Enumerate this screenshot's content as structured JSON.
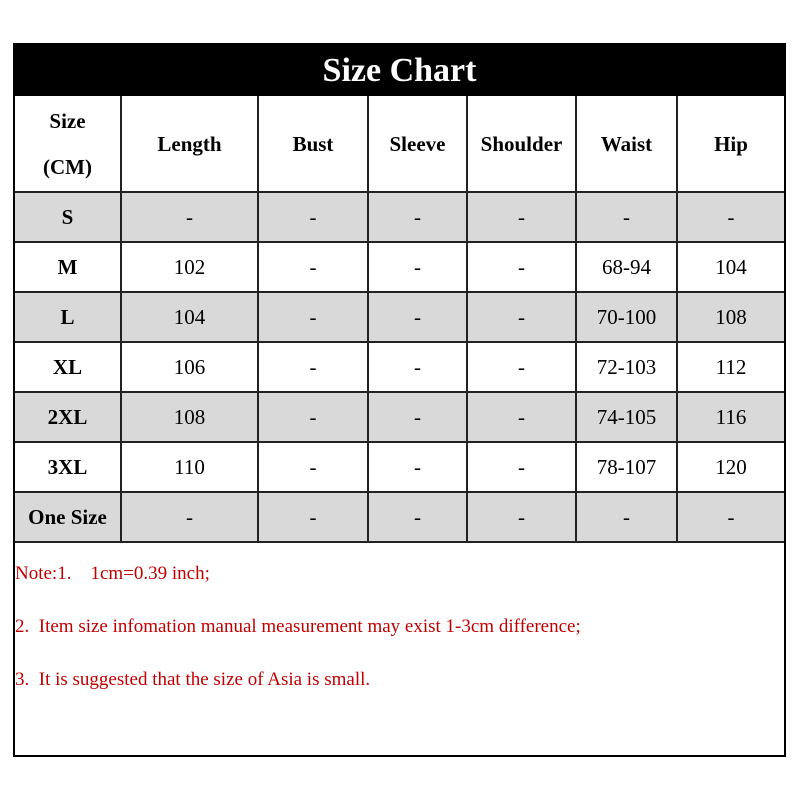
{
  "title": "Size Chart",
  "headers": [
    "Size\n(CM)",
    "Length",
    "Bust",
    "Sleeve",
    "Shoulder",
    "Waist",
    "Hip"
  ],
  "rows": [
    [
      "S",
      "-",
      "-",
      "-",
      "-",
      "-",
      "-"
    ],
    [
      "M",
      "102",
      "-",
      "-",
      "-",
      "68-94",
      "104"
    ],
    [
      "L",
      "104",
      "-",
      "-",
      "-",
      "70-100",
      "108"
    ],
    [
      "XL",
      "106",
      "-",
      "-",
      "-",
      "72-103",
      "112"
    ],
    [
      "2XL",
      "108",
      "-",
      "-",
      "-",
      "74-105",
      "116"
    ],
    [
      "3XL",
      "110",
      "-",
      "-",
      "-",
      "78-107",
      "120"
    ],
    [
      "One Size",
      "-",
      "-",
      "-",
      "-",
      "-",
      "-"
    ]
  ],
  "notes": [
    "Note:1.    1cm=0.39 inch;",
    "2.  Item size infomation manual measurement may exist 1-3cm difference;",
    "3.  It is suggested that the size of Asia is small."
  ],
  "colors": {
    "header_bg": "#000000",
    "alt_row": "#d9d9d9",
    "note_text": "#c00000"
  }
}
